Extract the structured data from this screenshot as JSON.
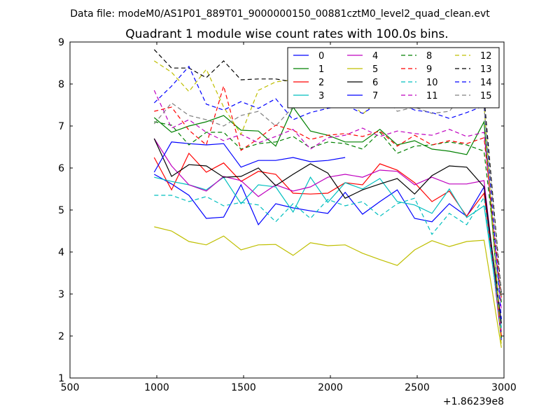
{
  "suptitle": "Data file: modeM0/AS1P01_889T01_9000000150_00881cztM0_level2_quad_clean.evt",
  "chart_data": {
    "type": "line",
    "title": "Quadrant 1 module wise count rates with 100.0s bins.",
    "xlabel": "",
    "ylabel": "",
    "xlim": [
      500,
      3000
    ],
    "ylim": [
      1,
      9
    ],
    "x_offset_label": "+1.86239e8",
    "xticks": [
      500,
      1000,
      1500,
      2000,
      2500,
      3000
    ],
    "xtick_labels": [
      "500",
      "1000",
      "1500",
      "2000",
      "2500",
      "3000"
    ],
    "yticks": [
      1,
      2,
      3,
      4,
      5,
      6,
      7,
      8,
      9
    ],
    "ytick_labels": [
      "1",
      "2",
      "3",
      "4",
      "5",
      "6",
      "7",
      "8",
      "9"
    ],
    "grid": false,
    "legend_position": "top-right",
    "x": [
      985,
      1085,
      1185,
      1285,
      1385,
      1485,
      1585,
      1685,
      1785,
      1885,
      1985,
      2085,
      2185,
      2285,
      2385,
      2485,
      2585,
      2685,
      2785,
      2885,
      2985
    ],
    "series": [
      {
        "name": "0",
        "color": "#0000ff",
        "dash": "solid",
        "values": [
          5.85,
          5.62,
          5.35,
          4.8,
          4.83,
          5.6,
          4.65,
          5.15,
          5.05,
          4.98,
          4.92,
          5.42,
          4.9,
          5.2,
          5.48,
          4.8,
          4.72,
          5.15,
          4.85,
          5.55,
          1.9
        ]
      },
      {
        "name": "1",
        "color": "#008000",
        "dash": "solid",
        "values": [
          7.2,
          6.85,
          7.0,
          7.1,
          7.25,
          6.9,
          6.88,
          6.52,
          7.45,
          6.88,
          6.78,
          6.62,
          6.62,
          6.92,
          6.55,
          6.65,
          6.45,
          6.4,
          6.32,
          7.1,
          1.95
        ]
      },
      {
        "name": "2",
        "color": "#ff0000",
        "dash": "solid",
        "values": [
          6.25,
          5.48,
          6.35,
          5.9,
          6.12,
          5.68,
          5.92,
          5.85,
          5.4,
          5.38,
          5.4,
          5.65,
          5.6,
          6.1,
          5.95,
          5.65,
          5.2,
          5.45,
          4.85,
          5.4,
          2.0
        ]
      },
      {
        "name": "3",
        "color": "#00bfbf",
        "dash": "solid",
        "values": [
          5.78,
          5.68,
          5.6,
          5.48,
          5.78,
          5.15,
          5.6,
          5.55,
          4.95,
          5.78,
          5.18,
          5.65,
          5.5,
          5.75,
          5.2,
          5.12,
          4.92,
          5.5,
          4.82,
          5.1,
          2.2
        ]
      },
      {
        "name": "4",
        "color": "#bf00bf",
        "dash": "solid",
        "values": [
          6.7,
          6.05,
          5.6,
          5.45,
          5.8,
          5.7,
          5.32,
          5.6,
          5.45,
          5.55,
          5.78,
          5.85,
          5.78,
          5.95,
          5.92,
          5.6,
          5.78,
          5.62,
          5.62,
          5.7,
          2.1
        ]
      },
      {
        "name": "5",
        "color": "#bfbf00",
        "dash": "solid",
        "values": [
          4.6,
          4.5,
          4.25,
          4.17,
          4.38,
          4.05,
          4.17,
          4.18,
          3.92,
          4.22,
          4.15,
          4.17,
          3.97,
          3.82,
          3.68,
          4.05,
          4.27,
          4.13,
          4.25,
          4.28,
          1.72
        ]
      },
      {
        "name": "6",
        "color": "#000000",
        "dash": "solid",
        "values": [
          6.7,
          5.8,
          6.08,
          6.05,
          5.78,
          5.8,
          6.0,
          5.58,
          5.85,
          6.1,
          5.88,
          5.28,
          5.48,
          5.62,
          5.75,
          5.38,
          5.82,
          6.05,
          6.02,
          5.55,
          2.3
        ]
      },
      {
        "name": "7",
        "color": "#0000ff",
        "dash": "solid",
        "values": [
          5.9,
          6.62,
          6.58,
          6.55,
          6.58,
          6.02,
          6.18,
          6.18,
          6.25,
          6.15,
          6.18,
          6.25,
          null,
          null,
          null,
          null,
          null,
          null,
          null,
          null,
          null
        ]
      },
      {
        "name": "8",
        "color": "#008000",
        "dash": "dashed",
        "values": [
          7.1,
          7.02,
          6.55,
          6.85,
          6.85,
          6.45,
          6.58,
          6.62,
          6.75,
          6.48,
          6.62,
          6.58,
          6.45,
          6.85,
          6.35,
          6.52,
          6.55,
          6.62,
          6.55,
          6.4,
          2.8
        ]
      },
      {
        "name": "9",
        "color": "#ff0000",
        "dash": "dashed",
        "values": [
          7.35,
          7.45,
          6.9,
          6.55,
          7.95,
          6.42,
          6.7,
          7.02,
          6.9,
          6.68,
          6.78,
          6.82,
          6.75,
          6.88,
          6.52,
          6.78,
          6.55,
          6.65,
          6.58,
          6.72,
          2.9
        ]
      },
      {
        "name": "10",
        "color": "#00bfbf",
        "dash": "dashed",
        "values": [
          5.35,
          5.35,
          5.2,
          5.32,
          5.1,
          5.18,
          5.12,
          4.72,
          5.15,
          4.8,
          5.25,
          5.1,
          5.2,
          4.85,
          5.15,
          5.28,
          4.42,
          4.92,
          4.65,
          5.3,
          2.1
        ]
      },
      {
        "name": "11",
        "color": "#bf00bf",
        "dash": "dashed",
        "values": [
          7.85,
          6.95,
          7.15,
          6.85,
          6.65,
          6.8,
          6.6,
          6.75,
          6.92,
          6.45,
          6.72,
          6.78,
          6.95,
          6.75,
          6.88,
          6.82,
          6.78,
          6.92,
          6.75,
          6.85,
          2.6
        ]
      },
      {
        "name": "12",
        "color": "#bfbf00",
        "dash": "dashed",
        "values": [
          8.55,
          8.28,
          7.82,
          8.35,
          7.45,
          6.8,
          7.85,
          8.05,
          8.1,
          7.65,
          7.85,
          7.7,
          7.28,
          7.65,
          7.88,
          7.42,
          7.55,
          7.45,
          8.05,
          7.5,
          1.75
        ]
      },
      {
        "name": "13",
        "color": "#000000",
        "dash": "dashed",
        "values": [
          8.82,
          8.38,
          8.38,
          8.15,
          8.55,
          8.1,
          8.12,
          8.12,
          8.05,
          7.95,
          8.02,
          7.72,
          8.05,
          7.75,
          7.95,
          7.58,
          7.65,
          7.45,
          7.62,
          7.7,
          3.0
        ]
      },
      {
        "name": "14",
        "color": "#0000ff",
        "dash": "dashed",
        "values": [
          7.55,
          7.95,
          8.42,
          7.52,
          7.38,
          7.58,
          7.42,
          7.65,
          7.15,
          7.32,
          7.42,
          7.5,
          7.3,
          7.55,
          7.55,
          7.38,
          7.32,
          7.18,
          7.32,
          7.48,
          2.4
        ]
      },
      {
        "name": "15",
        "color": "#808080",
        "dash": "dashed",
        "values": [
          7.05,
          7.55,
          7.25,
          7.15,
          7.0,
          7.25,
          7.35,
          7.0,
          7.45,
          7.55,
          8.05,
          7.75,
          8.45,
          7.85,
          7.35,
          7.45,
          7.3,
          7.35,
          7.85,
          7.45,
          2.95
        ]
      }
    ]
  }
}
